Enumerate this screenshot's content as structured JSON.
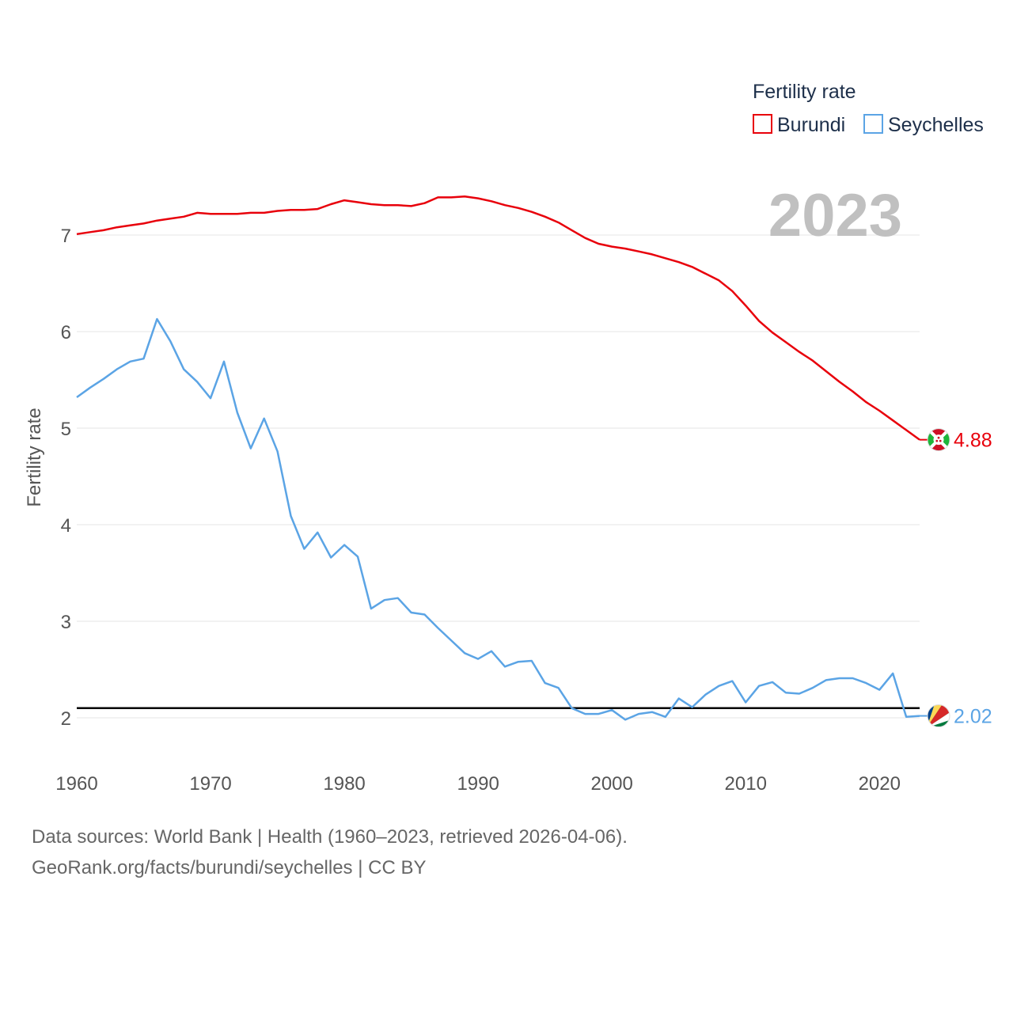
{
  "chart_data": {
    "type": "line",
    "title": "",
    "xlabel": "",
    "ylabel": "Fertility rate",
    "current_year": "2023",
    "xlim": [
      1960,
      2023
    ],
    "ylim": [
      1.5,
      7.9
    ],
    "xticks": [
      1960,
      1970,
      1980,
      1990,
      2000,
      2010,
      2020
    ],
    "yticks": [
      2,
      3,
      4,
      5,
      6,
      7
    ],
    "reference_line": 2.1,
    "legend": {
      "title": "Fertility rate",
      "position": "top-right"
    },
    "x": [
      1960,
      1961,
      1962,
      1963,
      1964,
      1965,
      1966,
      1967,
      1968,
      1969,
      1970,
      1971,
      1972,
      1973,
      1974,
      1975,
      1976,
      1977,
      1978,
      1979,
      1980,
      1981,
      1982,
      1983,
      1984,
      1985,
      1986,
      1987,
      1988,
      1989,
      1990,
      1991,
      1992,
      1993,
      1994,
      1995,
      1996,
      1997,
      1998,
      1999,
      2000,
      2001,
      2002,
      2003,
      2004,
      2005,
      2006,
      2007,
      2008,
      2009,
      2010,
      2011,
      2012,
      2013,
      2014,
      2015,
      2016,
      2017,
      2018,
      2019,
      2020,
      2021,
      2022,
      2023
    ],
    "series": [
      {
        "name": "Burundi",
        "color": "#e8000b",
        "end_label": "4.88",
        "flag_icon": "burundi-flag-icon",
        "values": [
          7.01,
          7.03,
          7.05,
          7.08,
          7.1,
          7.12,
          7.15,
          7.17,
          7.19,
          7.23,
          7.22,
          7.22,
          7.22,
          7.23,
          7.23,
          7.25,
          7.26,
          7.26,
          7.27,
          7.32,
          7.36,
          7.34,
          7.32,
          7.31,
          7.31,
          7.3,
          7.33,
          7.39,
          7.39,
          7.4,
          7.38,
          7.35,
          7.31,
          7.28,
          7.24,
          7.19,
          7.13,
          7.05,
          6.97,
          6.91,
          6.88,
          6.86,
          6.83,
          6.8,
          6.76,
          6.72,
          6.67,
          6.6,
          6.53,
          6.42,
          6.27,
          6.11,
          5.99,
          5.89,
          5.79,
          5.7,
          5.59,
          5.48,
          5.38,
          5.27,
          5.18,
          5.08,
          4.98,
          4.88
        ]
      },
      {
        "name": "Seychelles",
        "color": "#5ba4e5",
        "end_label": "2.02",
        "flag_icon": "seychelles-flag-icon",
        "values": [
          5.32,
          5.42,
          5.51,
          5.61,
          5.69,
          5.72,
          6.13,
          5.9,
          5.61,
          5.48,
          5.31,
          5.69,
          5.16,
          4.79,
          5.1,
          4.76,
          4.09,
          3.75,
          3.92,
          3.66,
          3.79,
          3.67,
          3.13,
          3.22,
          3.24,
          3.09,
          3.07,
          2.93,
          2.8,
          2.67,
          2.61,
          2.69,
          2.53,
          2.58,
          2.59,
          2.36,
          2.31,
          2.1,
          2.04,
          2.04,
          2.08,
          1.98,
          2.04,
          2.06,
          2.01,
          2.2,
          2.11,
          2.24,
          2.33,
          2.38,
          2.16,
          2.33,
          2.37,
          2.26,
          2.25,
          2.31,
          2.39,
          2.41,
          2.41,
          2.36,
          2.29,
          2.46,
          2.01,
          2.02
        ]
      }
    ]
  },
  "footer": {
    "source": "Data sources: World Bank | Health (1960–2023, retrieved 2026-04-06).",
    "credit": "GeoRank.org/facts/burundi/seychelles | CC BY"
  }
}
